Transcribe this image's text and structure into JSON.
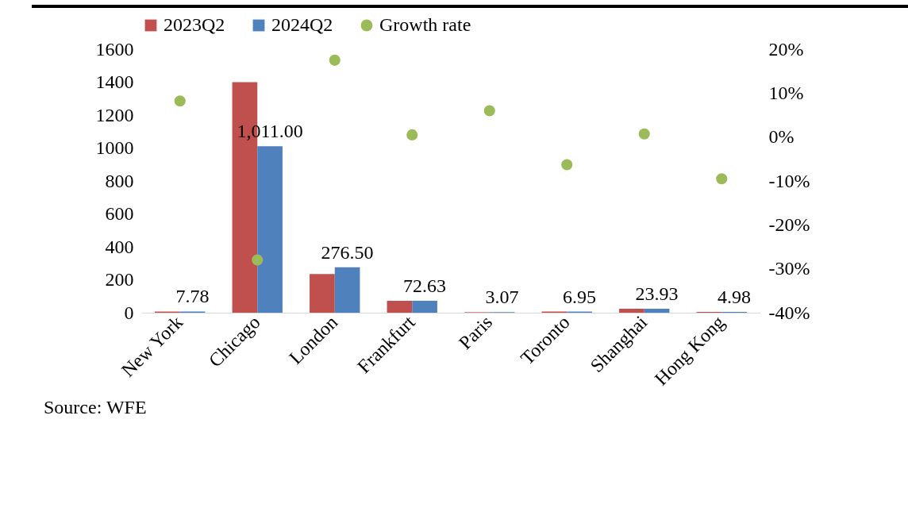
{
  "chart_data": {
    "type": "bar",
    "categories": [
      "New York",
      "Chicago",
      "London",
      "Frankfurt",
      "Paris",
      "Toronto",
      "Shanghai",
      "Hong Kong"
    ],
    "series": [
      {
        "name": "2023Q2",
        "color": "#c0504d",
        "values": [
          7,
          1400,
          235,
          72,
          3,
          7,
          24,
          5
        ]
      },
      {
        "name": "2024Q2",
        "color": "#4f81bd",
        "values": [
          7.78,
          1011.0,
          276.5,
          72.63,
          3.07,
          6.95,
          23.93,
          4.98
        ],
        "value_labels": [
          "7.78",
          "1,011.00",
          "276.50",
          "72.63",
          "3.07",
          "6.95",
          "23.93",
          "4.98"
        ]
      },
      {
        "name": "Growth rate",
        "type": "scatter",
        "axis": "y2",
        "color": "#9bbb59",
        "values": [
          8.2,
          -28,
          17.5,
          0.5,
          6,
          -6.3,
          0.7,
          -9.5
        ]
      }
    ],
    "ylim": [
      0,
      1600
    ],
    "yticks": [
      0,
      200,
      400,
      600,
      800,
      1000,
      1200,
      1400,
      1600
    ],
    "y2lim": [
      -40,
      20
    ],
    "y2ticks": [
      {
        "value": -40,
        "label": "-40%"
      },
      {
        "value": -30,
        "label": "-30%"
      },
      {
        "value": -20,
        "label": "-20%"
      },
      {
        "value": -10,
        "label": "-10%"
      },
      {
        "value": 0,
        "label": "0%"
      },
      {
        "value": 10,
        "label": "10%"
      },
      {
        "value": 20,
        "label": "20%"
      }
    ],
    "legend": "top",
    "grid": false,
    "marker": "circle",
    "annotations": [
      "Source: WFE"
    ]
  }
}
